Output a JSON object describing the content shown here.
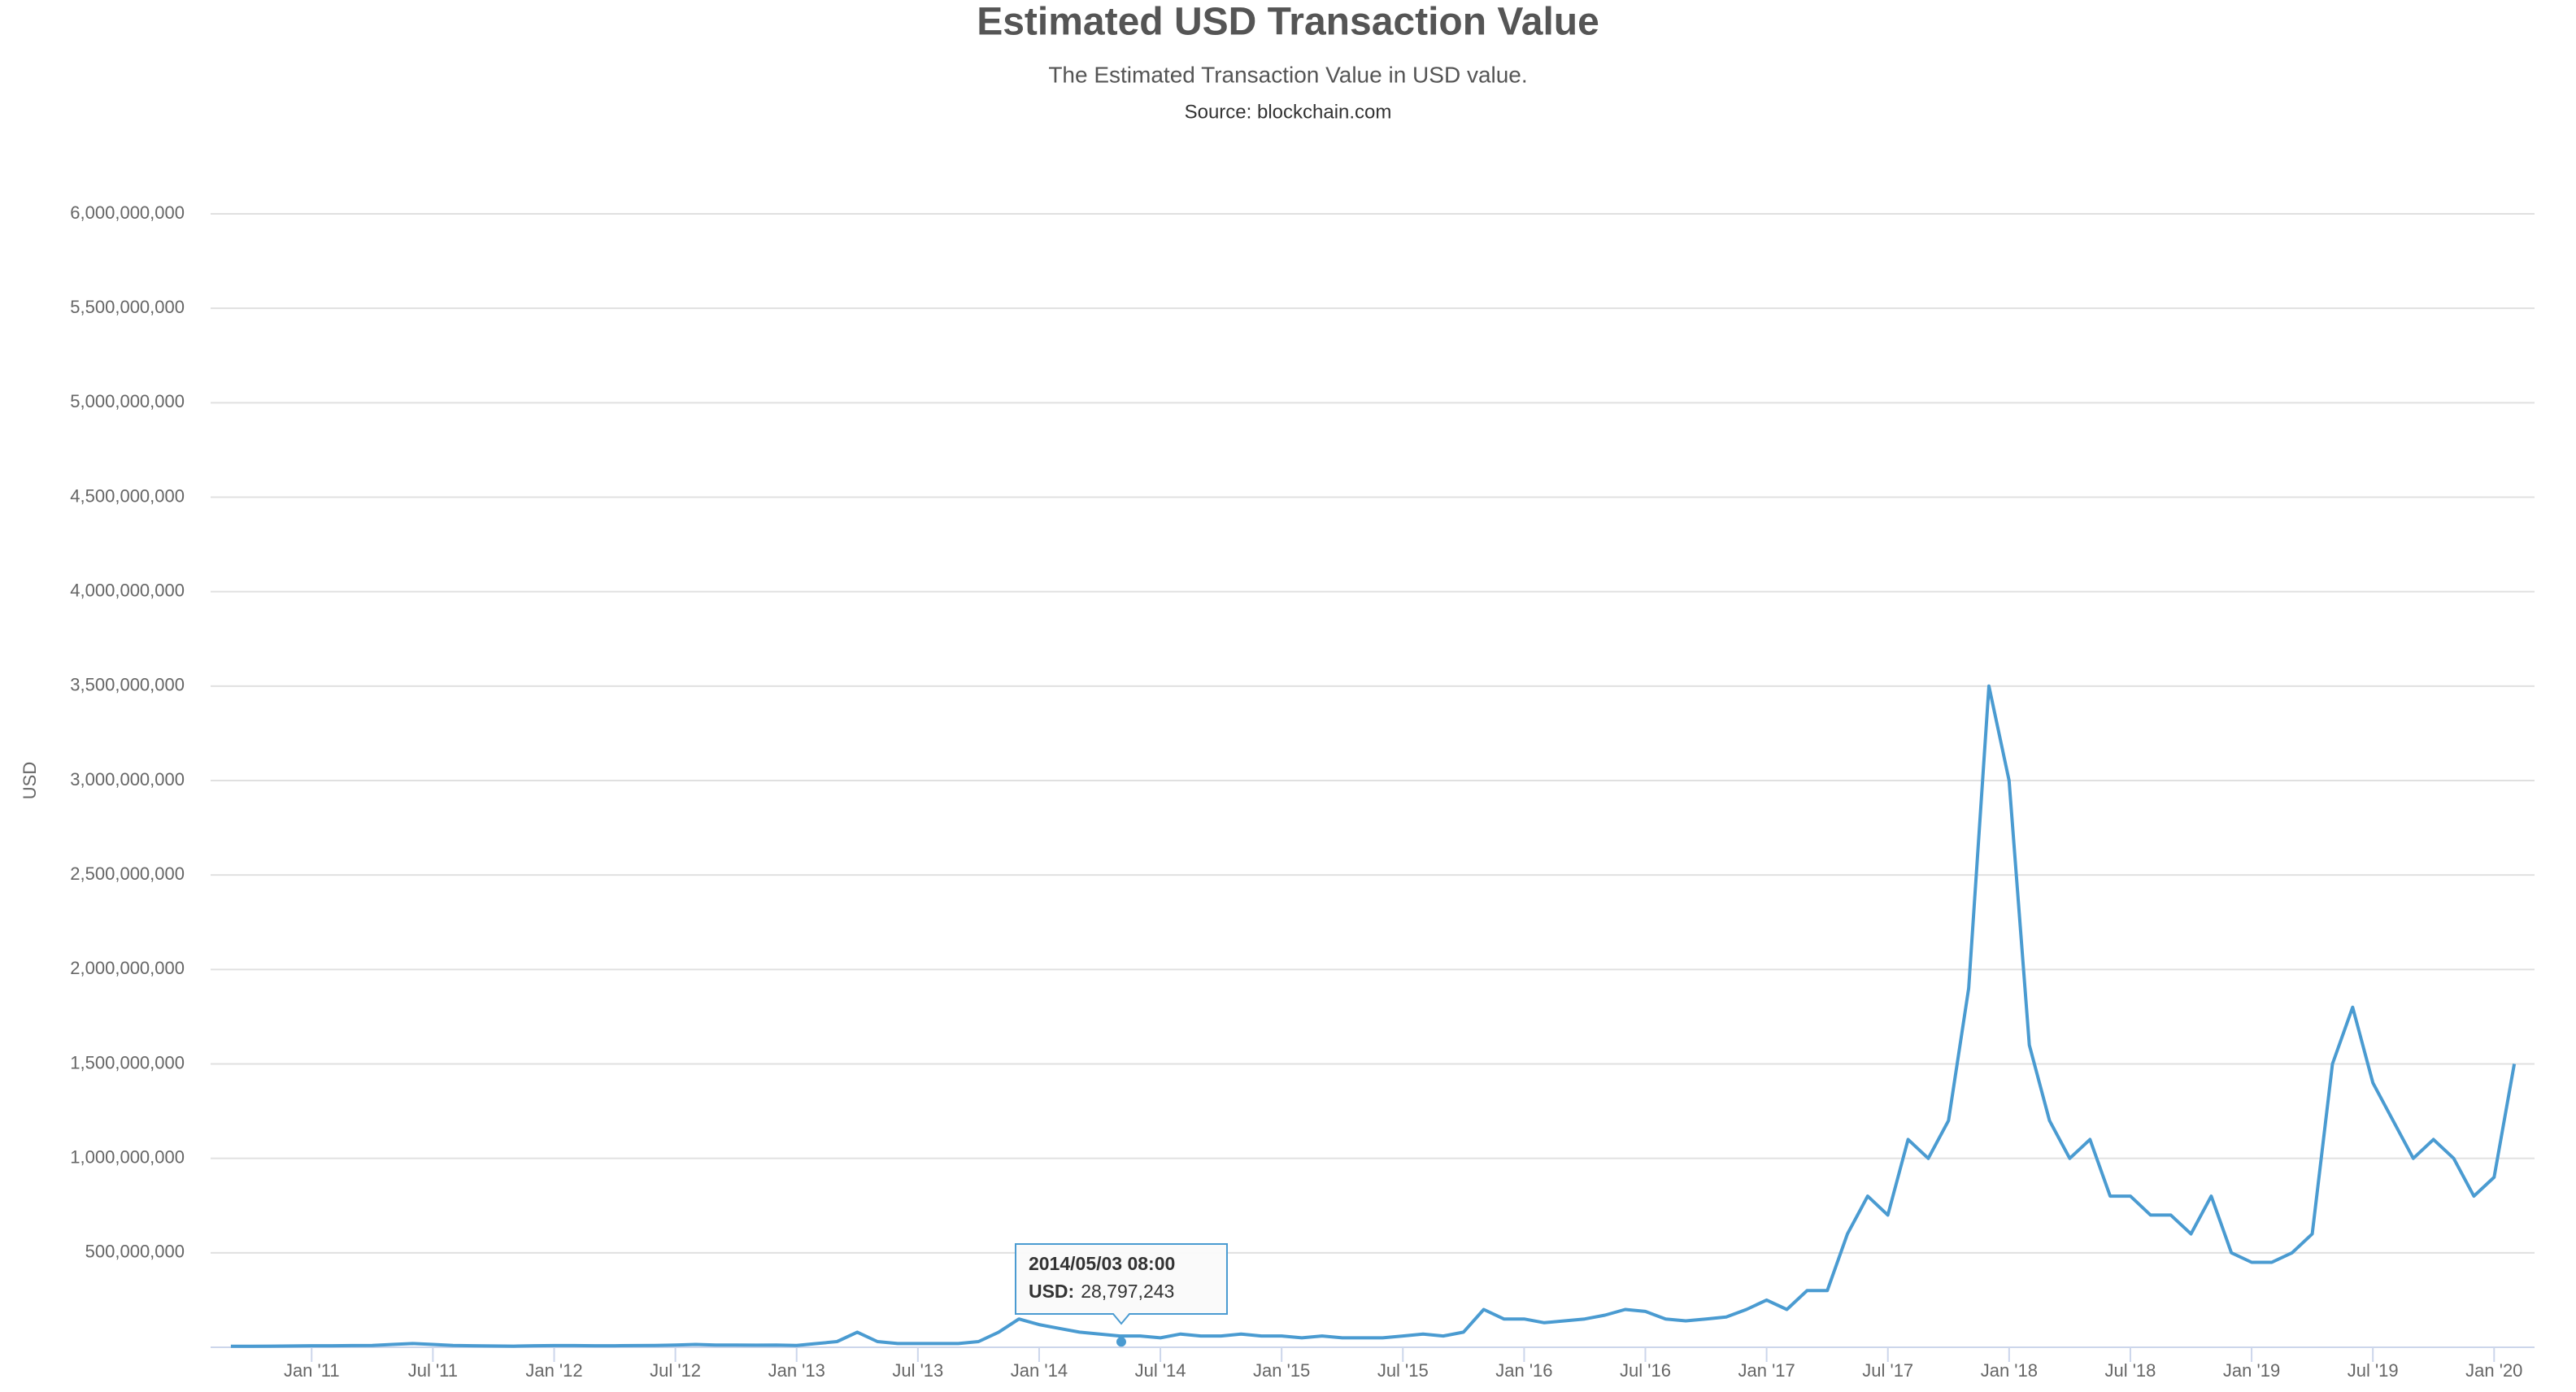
{
  "chart_data": {
    "type": "line",
    "title": "Estimated USD Transaction Value",
    "subtitle": "The Estimated Transaction Value in USD value.",
    "source": "Source: blockchain.com",
    "y_label": "USD",
    "color": "#4a9bd1",
    "grid": true,
    "xlim": [
      "2010-08",
      "2020-03"
    ],
    "xticks": [
      {
        "value": "2011-01",
        "label": "Jan '11"
      },
      {
        "value": "2011-07",
        "label": "Jul '11"
      },
      {
        "value": "2012-01",
        "label": "Jan '12"
      },
      {
        "value": "2012-07",
        "label": "Jul '12"
      },
      {
        "value": "2013-01",
        "label": "Jan '13"
      },
      {
        "value": "2013-07",
        "label": "Jul '13"
      },
      {
        "value": "2014-01",
        "label": "Jan '14"
      },
      {
        "value": "2014-07",
        "label": "Jul '14"
      },
      {
        "value": "2015-01",
        "label": "Jan '15"
      },
      {
        "value": "2015-07",
        "label": "Jul '15"
      },
      {
        "value": "2016-01",
        "label": "Jan '16"
      },
      {
        "value": "2016-07",
        "label": "Jul '16"
      },
      {
        "value": "2017-01",
        "label": "Jan '17"
      },
      {
        "value": "2017-07",
        "label": "Jul '17"
      },
      {
        "value": "2018-01",
        "label": "Jan '18"
      },
      {
        "value": "2018-07",
        "label": "Jul '18"
      },
      {
        "value": "2019-01",
        "label": "Jan '19"
      },
      {
        "value": "2019-07",
        "label": "Jul '19"
      },
      {
        "value": "2020-01",
        "label": "Jan '20"
      }
    ],
    "ylim": [
      0,
      6000000000
    ],
    "yticks": [
      {
        "value": 500000000,
        "label": "500,000,000"
      },
      {
        "value": 1000000000,
        "label": "1,000,000,000"
      },
      {
        "value": 1500000000,
        "label": "1,500,000,000"
      },
      {
        "value": 2000000000,
        "label": "2,000,000,000"
      },
      {
        "value": 2500000000,
        "label": "2,500,000,000"
      },
      {
        "value": 3000000000,
        "label": "3,000,000,000"
      },
      {
        "value": 3500000000,
        "label": "3,500,000,000"
      },
      {
        "value": 4000000000,
        "label": "4,000,000,000"
      },
      {
        "value": 4500000000,
        "label": "4,500,000,000"
      },
      {
        "value": 5000000000,
        "label": "5,000,000,000"
      },
      {
        "value": 5500000000,
        "label": "5,500,000,000"
      },
      {
        "value": 6000000000,
        "label": "6,000,000,000"
      }
    ],
    "x": [
      "2010-09",
      "2010-10",
      "2010-11",
      "2010-12",
      "2011-01",
      "2011-02",
      "2011-03",
      "2011-04",
      "2011-05",
      "2011-06",
      "2011-07",
      "2011-08",
      "2011-09",
      "2011-10",
      "2011-11",
      "2011-12",
      "2012-01",
      "2012-02",
      "2012-03",
      "2012-04",
      "2012-05",
      "2012-06",
      "2012-07",
      "2012-08",
      "2012-09",
      "2012-10",
      "2012-11",
      "2012-12",
      "2013-01",
      "2013-02",
      "2013-03",
      "2013-04",
      "2013-05",
      "2013-06",
      "2013-07",
      "2013-08",
      "2013-09",
      "2013-10",
      "2013-11",
      "2013-12",
      "2014-01",
      "2014-02",
      "2014-03",
      "2014-04",
      "2014-05",
      "2014-06",
      "2014-07",
      "2014-08",
      "2014-09",
      "2014-10",
      "2014-11",
      "2014-12",
      "2015-01",
      "2015-02",
      "2015-03",
      "2015-04",
      "2015-05",
      "2015-06",
      "2015-07",
      "2015-08",
      "2015-09",
      "2015-10",
      "2015-11",
      "2015-12",
      "2016-01",
      "2016-02",
      "2016-03",
      "2016-04",
      "2016-05",
      "2016-06",
      "2016-07",
      "2016-08",
      "2016-09",
      "2016-10",
      "2016-11",
      "2016-12",
      "2017-01",
      "2017-02",
      "2017-03",
      "2017-04",
      "2017-05",
      "2017-06",
      "2017-07",
      "2017-08",
      "2017-09",
      "2017-10",
      "2017-11",
      "2017-12",
      "2018-01",
      "2018-02",
      "2018-03",
      "2018-04",
      "2018-05",
      "2018-06",
      "2018-07",
      "2018-08",
      "2018-09",
      "2018-10",
      "2018-11",
      "2018-12",
      "2019-01",
      "2019-02",
      "2019-03",
      "2019-04",
      "2019-05",
      "2019-06",
      "2019-07",
      "2019-08",
      "2019-09",
      "2019-10",
      "2019-11",
      "2019-12",
      "2020-01",
      "2020-02"
    ],
    "values": [
      5000000,
      5000000,
      6000000,
      7000000,
      8000000,
      8000000,
      9000000,
      10000000,
      15000000,
      20000000,
      15000000,
      10000000,
      8000000,
      7000000,
      6000000,
      8000000,
      9000000,
      9000000,
      8000000,
      8000000,
      9000000,
      10000000,
      12000000,
      15000000,
      12000000,
      12000000,
      11000000,
      12000000,
      10000000,
      20000000,
      30000000,
      80000000,
      30000000,
      20000000,
      20000000,
      20000000,
      20000000,
      30000000,
      80000000,
      150000000,
      120000000,
      100000000,
      80000000,
      70000000,
      60000000,
      60000000,
      50000000,
      70000000,
      60000000,
      60000000,
      70000000,
      60000000,
      60000000,
      50000000,
      60000000,
      50000000,
      50000000,
      50000000,
      60000000,
      70000000,
      60000000,
      80000000,
      200000000,
      150000000,
      150000000,
      130000000,
      140000000,
      150000000,
      170000000,
      200000000,
      190000000,
      150000000,
      140000000,
      150000000,
      160000000,
      200000000,
      250000000,
      200000000,
      300000000,
      300000000,
      600000000,
      800000000,
      700000000,
      1100000000,
      1000000000,
      1200000000,
      1900000000,
      3500000000,
      3000000000,
      1600000000,
      1200000000,
      1000000000,
      1100000000,
      800000000,
      800000000,
      700000000,
      700000000,
      600000000,
      800000000,
      500000000,
      450000000,
      450000000,
      500000000,
      600000000,
      1500000000,
      1800000000,
      1400000000,
      1200000000,
      1000000000,
      1100000000,
      1000000000,
      800000000,
      900000000,
      1500000000
    ],
    "tooltip": {
      "title": "2014/05/03 08:00",
      "label": "USD:",
      "value": 28797243,
      "value_label": "28,797,243"
    }
  }
}
